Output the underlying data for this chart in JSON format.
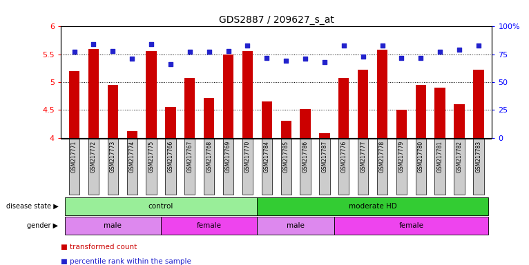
{
  "title": "GDS2887 / 209627_s_at",
  "samples": [
    "GSM217771",
    "GSM217772",
    "GSM217773",
    "GSM217774",
    "GSM217775",
    "GSM217766",
    "GSM217767",
    "GSM217768",
    "GSM217769",
    "GSM217770",
    "GSM217784",
    "GSM217785",
    "GSM217786",
    "GSM217787",
    "GSM217776",
    "GSM217777",
    "GSM217778",
    "GSM217779",
    "GSM217780",
    "GSM217781",
    "GSM217782",
    "GSM217783"
  ],
  "transformed_count": [
    5.2,
    5.6,
    4.95,
    4.12,
    5.56,
    4.56,
    5.08,
    4.72,
    5.5,
    5.56,
    4.65,
    4.3,
    4.52,
    4.08,
    5.08,
    5.22,
    5.58,
    4.5,
    4.95,
    4.9,
    4.6,
    5.22
  ],
  "percentile_rank": [
    77,
    84,
    78,
    71,
    84,
    66,
    77,
    77,
    78,
    83,
    72,
    69,
    71,
    68,
    83,
    73,
    83,
    72,
    72,
    77,
    79,
    83
  ],
  "ylim_left": [
    4.0,
    6.0
  ],
  "ylim_right": [
    0,
    100
  ],
  "yticks_left": [
    4.0,
    4.5,
    5.0,
    5.5,
    6.0
  ],
  "yticks_right": [
    0,
    25,
    50,
    75,
    100
  ],
  "bar_color": "#cc0000",
  "dot_color": "#2222cc",
  "background_color": "#ffffff",
  "sample_bg_color": "#cccccc",
  "disease_state_groups": [
    {
      "label": "control",
      "start": 0,
      "end": 10,
      "color": "#99ee99"
    },
    {
      "label": "moderate HD",
      "start": 10,
      "end": 22,
      "color": "#33cc33"
    }
  ],
  "gender_groups": [
    {
      "label": "male",
      "start": 0,
      "end": 5,
      "color": "#dd88ee"
    },
    {
      "label": "female",
      "start": 5,
      "end": 10,
      "color": "#ee44ee"
    },
    {
      "label": "male",
      "start": 10,
      "end": 14,
      "color": "#dd88ee"
    },
    {
      "label": "female",
      "start": 14,
      "end": 22,
      "color": "#ee44ee"
    }
  ],
  "legend_items": [
    {
      "label": "transformed count",
      "color": "#cc0000"
    },
    {
      "label": "percentile rank within the sample",
      "color": "#2222cc"
    }
  ]
}
